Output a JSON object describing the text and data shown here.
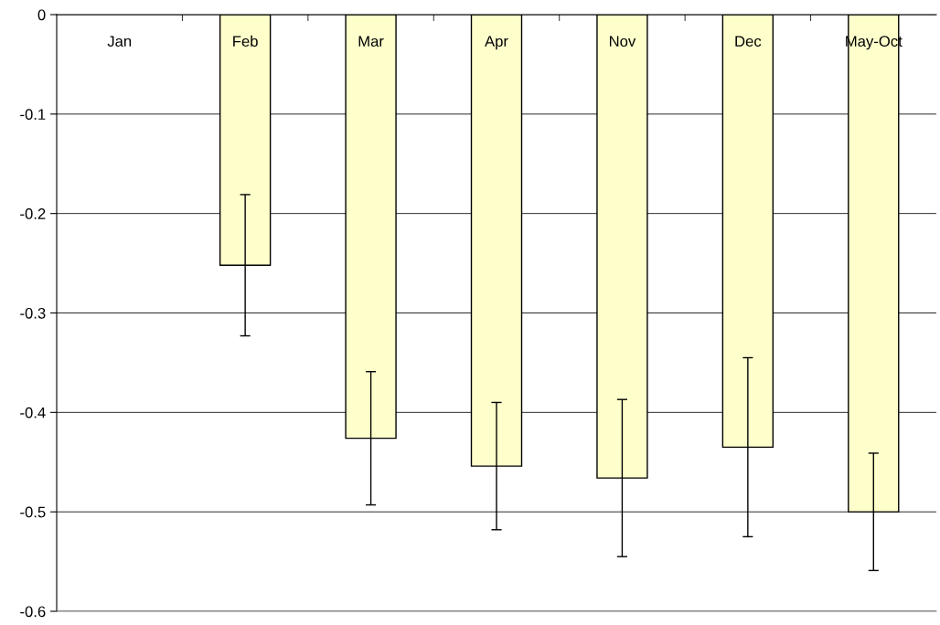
{
  "chart_data": {
    "type": "bar",
    "categories": [
      "Jan",
      "Feb",
      "Mar",
      "Apr",
      "Nov",
      "Dec",
      "May-Oct"
    ],
    "values": [
      null,
      -0.252,
      -0.426,
      -0.454,
      -0.466,
      -0.435,
      -0.5
    ],
    "errors": [
      null,
      0.071,
      0.067,
      0.064,
      0.079,
      0.09,
      0.059
    ],
    "color": "#ffffcc",
    "ylim": [
      -0.6,
      0
    ],
    "yticks": [
      -0.6,
      -0.5,
      -0.4,
      -0.3,
      -0.2,
      -0.1,
      0
    ],
    "grid": "y"
  }
}
